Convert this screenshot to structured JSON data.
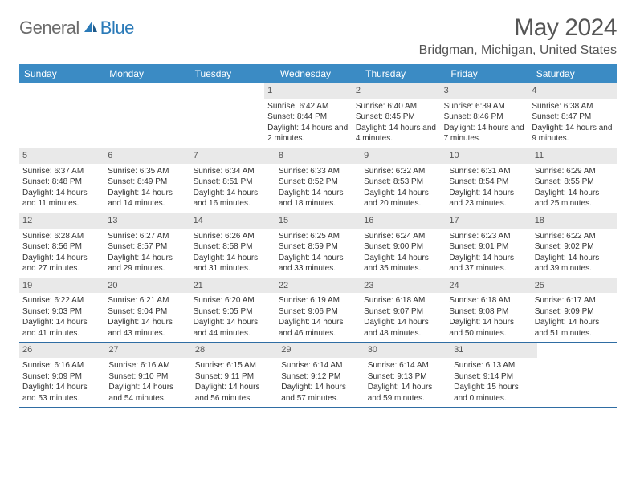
{
  "logo": {
    "text1": "General",
    "text2": "Blue"
  },
  "title": "May 2024",
  "location": "Bridgman, Michigan, United States",
  "colors": {
    "header_bg": "#3b8bc4",
    "header_text": "#ffffff",
    "row_border": "#2f6da3",
    "daynum_bg": "#e9e9e9",
    "body_text": "#333333",
    "title_text": "#555555",
    "logo_gray": "#6b6b6b",
    "logo_blue": "#2a7ab8",
    "page_bg": "#ffffff"
  },
  "typography": {
    "month_title_pt": 30,
    "location_pt": 16,
    "weekday_pt": 12,
    "daynum_pt": 11,
    "body_pt": 10,
    "logo_pt": 22
  },
  "weekdays": [
    "Sunday",
    "Monday",
    "Tuesday",
    "Wednesday",
    "Thursday",
    "Friday",
    "Saturday"
  ],
  "weeks": [
    [
      null,
      null,
      null,
      {
        "n": "1",
        "sr": "6:42 AM",
        "ss": "8:44 PM",
        "dl": "14 hours and 2 minutes."
      },
      {
        "n": "2",
        "sr": "6:40 AM",
        "ss": "8:45 PM",
        "dl": "14 hours and 4 minutes."
      },
      {
        "n": "3",
        "sr": "6:39 AM",
        "ss": "8:46 PM",
        "dl": "14 hours and 7 minutes."
      },
      {
        "n": "4",
        "sr": "6:38 AM",
        "ss": "8:47 PM",
        "dl": "14 hours and 9 minutes."
      }
    ],
    [
      {
        "n": "5",
        "sr": "6:37 AM",
        "ss": "8:48 PM",
        "dl": "14 hours and 11 minutes."
      },
      {
        "n": "6",
        "sr": "6:35 AM",
        "ss": "8:49 PM",
        "dl": "14 hours and 14 minutes."
      },
      {
        "n": "7",
        "sr": "6:34 AM",
        "ss": "8:51 PM",
        "dl": "14 hours and 16 minutes."
      },
      {
        "n": "8",
        "sr": "6:33 AM",
        "ss": "8:52 PM",
        "dl": "14 hours and 18 minutes."
      },
      {
        "n": "9",
        "sr": "6:32 AM",
        "ss": "8:53 PM",
        "dl": "14 hours and 20 minutes."
      },
      {
        "n": "10",
        "sr": "6:31 AM",
        "ss": "8:54 PM",
        "dl": "14 hours and 23 minutes."
      },
      {
        "n": "11",
        "sr": "6:29 AM",
        "ss": "8:55 PM",
        "dl": "14 hours and 25 minutes."
      }
    ],
    [
      {
        "n": "12",
        "sr": "6:28 AM",
        "ss": "8:56 PM",
        "dl": "14 hours and 27 minutes."
      },
      {
        "n": "13",
        "sr": "6:27 AM",
        "ss": "8:57 PM",
        "dl": "14 hours and 29 minutes."
      },
      {
        "n": "14",
        "sr": "6:26 AM",
        "ss": "8:58 PM",
        "dl": "14 hours and 31 minutes."
      },
      {
        "n": "15",
        "sr": "6:25 AM",
        "ss": "8:59 PM",
        "dl": "14 hours and 33 minutes."
      },
      {
        "n": "16",
        "sr": "6:24 AM",
        "ss": "9:00 PM",
        "dl": "14 hours and 35 minutes."
      },
      {
        "n": "17",
        "sr": "6:23 AM",
        "ss": "9:01 PM",
        "dl": "14 hours and 37 minutes."
      },
      {
        "n": "18",
        "sr": "6:22 AM",
        "ss": "9:02 PM",
        "dl": "14 hours and 39 minutes."
      }
    ],
    [
      {
        "n": "19",
        "sr": "6:22 AM",
        "ss": "9:03 PM",
        "dl": "14 hours and 41 minutes."
      },
      {
        "n": "20",
        "sr": "6:21 AM",
        "ss": "9:04 PM",
        "dl": "14 hours and 43 minutes."
      },
      {
        "n": "21",
        "sr": "6:20 AM",
        "ss": "9:05 PM",
        "dl": "14 hours and 44 minutes."
      },
      {
        "n": "22",
        "sr": "6:19 AM",
        "ss": "9:06 PM",
        "dl": "14 hours and 46 minutes."
      },
      {
        "n": "23",
        "sr": "6:18 AM",
        "ss": "9:07 PM",
        "dl": "14 hours and 48 minutes."
      },
      {
        "n": "24",
        "sr": "6:18 AM",
        "ss": "9:08 PM",
        "dl": "14 hours and 50 minutes."
      },
      {
        "n": "25",
        "sr": "6:17 AM",
        "ss": "9:09 PM",
        "dl": "14 hours and 51 minutes."
      }
    ],
    [
      {
        "n": "26",
        "sr": "6:16 AM",
        "ss": "9:09 PM",
        "dl": "14 hours and 53 minutes."
      },
      {
        "n": "27",
        "sr": "6:16 AM",
        "ss": "9:10 PM",
        "dl": "14 hours and 54 minutes."
      },
      {
        "n": "28",
        "sr": "6:15 AM",
        "ss": "9:11 PM",
        "dl": "14 hours and 56 minutes."
      },
      {
        "n": "29",
        "sr": "6:14 AM",
        "ss": "9:12 PM",
        "dl": "14 hours and 57 minutes."
      },
      {
        "n": "30",
        "sr": "6:14 AM",
        "ss": "9:13 PM",
        "dl": "14 hours and 59 minutes."
      },
      {
        "n": "31",
        "sr": "6:13 AM",
        "ss": "9:14 PM",
        "dl": "15 hours and 0 minutes."
      },
      null
    ]
  ],
  "labels": {
    "sunrise": "Sunrise:",
    "sunset": "Sunset:",
    "daylight": "Daylight:"
  }
}
